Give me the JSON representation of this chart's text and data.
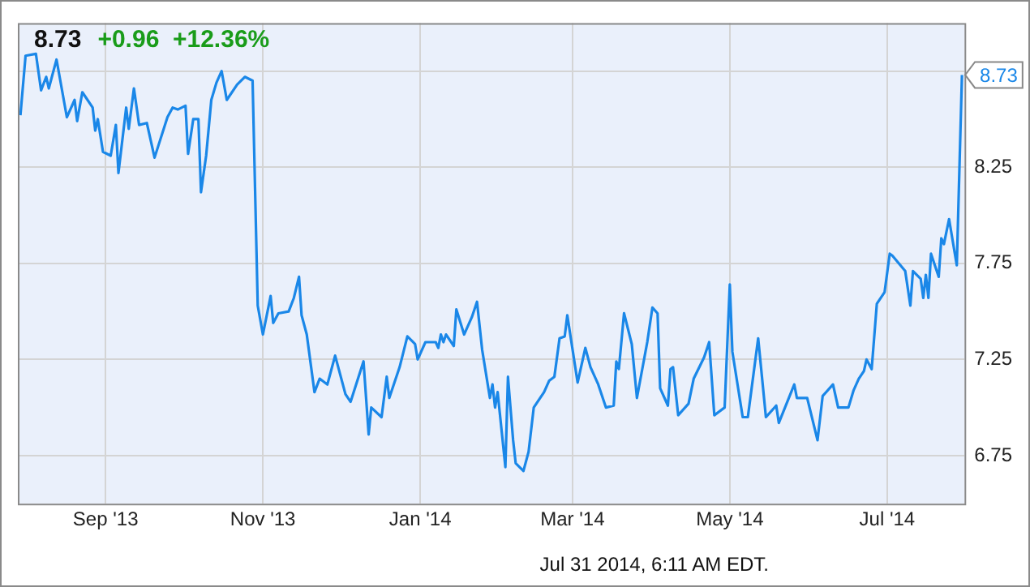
{
  "chart_data": {
    "type": "line",
    "title": "8.73",
    "subtitle": "+0.96  +12.36%",
    "x": [
      "2013-07-30",
      "2013-08-01",
      "2013-08-05",
      "2013-08-07",
      "2013-08-09",
      "2013-08-10",
      "2013-08-13",
      "2013-08-17",
      "2013-08-20",
      "2013-08-21",
      "2013-08-23",
      "2013-08-27",
      "2013-08-28",
      "2013-08-29",
      "2013-08-31",
      "2013-09-03",
      "2013-09-05",
      "2013-09-06",
      "2013-09-09",
      "2013-09-10",
      "2013-09-12",
      "2013-09-14",
      "2013-09-17",
      "2013-09-20",
      "2013-09-25",
      "2013-09-27",
      "2013-09-29",
      "2013-10-02",
      "2013-10-03",
      "2013-10-05",
      "2013-10-07",
      "2013-10-08",
      "2013-10-10",
      "2013-10-12",
      "2013-10-14",
      "2013-10-16",
      "2013-10-18",
      "2013-10-22",
      "2013-10-25",
      "2013-10-28",
      "2013-10-30",
      "2013-11-01",
      "2013-11-04",
      "2013-11-05",
      "2013-11-07",
      "2013-11-11",
      "2013-11-13",
      "2013-11-15",
      "2013-11-16",
      "2013-11-18",
      "2013-11-21",
      "2013-11-23",
      "2013-11-26",
      "2013-11-29",
      "2013-12-03",
      "2013-12-05",
      "2013-12-10",
      "2013-12-12",
      "2013-12-13",
      "2013-12-17",
      "2013-12-19",
      "2013-12-20",
      "2013-12-24",
      "2013-12-27",
      "2013-12-30",
      "2013-12-31",
      "2014-01-03",
      "2014-01-07",
      "2014-01-08",
      "2014-01-09",
      "2014-01-10",
      "2014-01-11",
      "2014-01-14",
      "2014-01-15",
      "2014-01-18",
      "2014-01-21",
      "2014-01-23",
      "2014-01-25",
      "2014-01-28",
      "2014-01-29",
      "2014-01-30",
      "2014-01-31",
      "2014-02-03",
      "2014-02-04",
      "2014-02-06",
      "2014-02-07",
      "2014-02-10",
      "2014-02-12",
      "2014-02-14",
      "2014-02-18",
      "2014-02-20",
      "2014-02-22",
      "2014-02-24",
      "2014-02-26",
      "2014-02-27",
      "2014-03-03",
      "2014-03-06",
      "2014-03-08",
      "2014-03-11",
      "2014-03-14",
      "2014-03-17",
      "2014-03-18",
      "2014-03-19",
      "2014-03-21",
      "2014-03-24",
      "2014-03-26",
      "2014-03-30",
      "2014-04-01",
      "2014-04-03",
      "2014-04-04",
      "2014-04-07",
      "2014-04-08",
      "2014-04-09",
      "2014-04-11",
      "2014-04-15",
      "2014-04-17",
      "2014-04-21",
      "2014-04-23",
      "2014-04-25",
      "2014-04-29",
      "2014-05-01",
      "2014-05-02",
      "2014-05-06",
      "2014-05-08",
      "2014-05-12",
      "2014-05-15",
      "2014-05-19",
      "2014-05-20",
      "2014-05-26",
      "2014-05-27",
      "2014-05-31",
      "2014-06-04",
      "2014-06-06",
      "2014-06-10",
      "2014-06-12",
      "2014-06-16",
      "2014-06-18",
      "2014-06-20",
      "2014-06-22",
      "2014-06-23",
      "2014-06-25",
      "2014-06-27",
      "2014-06-30",
      "2014-07-02",
      "2014-07-03",
      "2014-07-08",
      "2014-07-10",
      "2014-07-11",
      "2014-07-14",
      "2014-07-15",
      "2014-07-16",
      "2014-07-17",
      "2014-07-18",
      "2014-07-21",
      "2014-07-22",
      "2014-07-23",
      "2014-07-25",
      "2014-07-28",
      "2014-07-30"
    ],
    "series": [
      {
        "color": "#1a87e8",
        "values": [
          8.52,
          8.83,
          8.84,
          8.65,
          8.72,
          8.66,
          8.81,
          8.51,
          8.6,
          8.49,
          8.64,
          8.56,
          8.44,
          8.5,
          8.33,
          8.31,
          8.47,
          8.22,
          8.56,
          8.45,
          8.66,
          8.47,
          8.48,
          8.3,
          8.51,
          8.56,
          8.55,
          8.57,
          8.32,
          8.5,
          8.5,
          8.12,
          8.31,
          8.6,
          8.69,
          8.75,
          8.6,
          8.68,
          8.72,
          8.7,
          7.53,
          7.38,
          7.58,
          7.44,
          7.49,
          7.5,
          7.57,
          7.68,
          7.48,
          7.38,
          7.08,
          7.15,
          7.12,
          7.27,
          7.07,
          7.03,
          7.24,
          6.86,
          7.0,
          6.95,
          7.16,
          7.05,
          7.21,
          7.37,
          7.33,
          7.25,
          7.34,
          7.34,
          7.31,
          7.38,
          7.34,
          7.38,
          7.32,
          7.51,
          7.38,
          7.47,
          7.55,
          7.3,
          7.05,
          7.12,
          7.0,
          7.08,
          6.69,
          7.16,
          6.83,
          6.71,
          6.67,
          6.77,
          7.0,
          7.08,
          7.14,
          7.16,
          7.36,
          7.37,
          7.48,
          7.13,
          7.31,
          7.21,
          7.12,
          7.0,
          7.01,
          7.24,
          7.2,
          7.49,
          7.33,
          7.05,
          7.34,
          7.52,
          7.49,
          7.1,
          7.01,
          7.2,
          7.21,
          6.96,
          7.02,
          7.15,
          7.26,
          7.34,
          6.96,
          7.0,
          7.64,
          7.29,
          6.95,
          6.95,
          7.36,
          6.95,
          7.01,
          6.92,
          7.12,
          7.05,
          7.05,
          6.83,
          7.06,
          7.12,
          7.0,
          7.0,
          7.09,
          7.15,
          7.19,
          7.25,
          7.2,
          7.54,
          7.6,
          7.8,
          7.79,
          7.71,
          7.53,
          7.71,
          7.67,
          7.57,
          7.69,
          7.57,
          7.8,
          7.68,
          7.88,
          7.85,
          7.98,
          7.74,
          8.73
        ]
      }
    ],
    "xlim": [
      "2013-07-29",
      "2014-07-31"
    ],
    "xticks": [
      {
        "value": "2013-09-01",
        "label": "Sep '13"
      },
      {
        "value": "2013-11-01",
        "label": "Nov '13"
      },
      {
        "value": "2014-01-01",
        "label": "Jan '14"
      },
      {
        "value": "2014-03-01",
        "label": "Mar '14"
      },
      {
        "value": "2014-05-01",
        "label": "May '14"
      },
      {
        "value": "2014-07-01",
        "label": "Jul '14"
      }
    ],
    "ylim": [
      6.5,
      9.0
    ],
    "yticks": [
      6.75,
      7.25,
      7.75,
      8.25,
      {
        "value": 8.75,
        "label": null
      }
    ],
    "grid": true,
    "annotations": [
      {
        "text": "8.73",
        "x": "2014-07-30",
        "y": 8.73
      },
      "Jul 31 2014, 6:11 AM EDT."
    ]
  }
}
